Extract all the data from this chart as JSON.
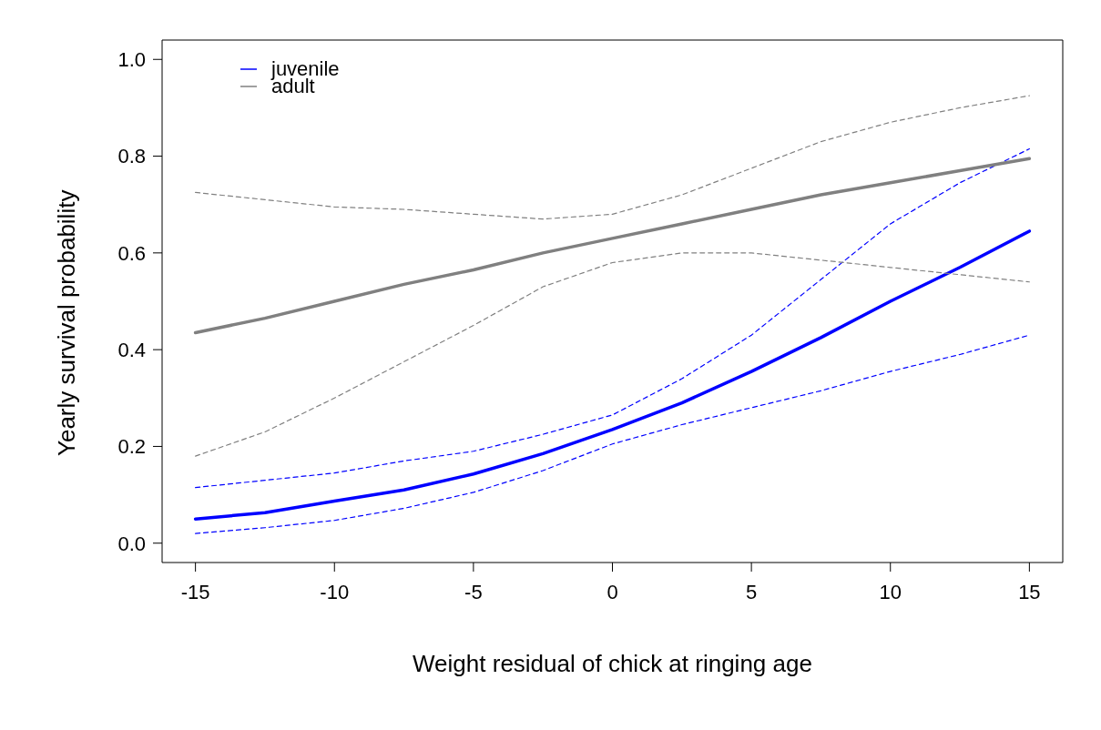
{
  "chart_data": {
    "type": "line",
    "xlabel": "Weight residual of chick at ringing age",
    "ylabel": "Yearly survival probability",
    "x": [
      -15,
      -12.5,
      -10,
      -7.5,
      -5,
      -2.5,
      0,
      2.5,
      5,
      7.5,
      10,
      12.5,
      15
    ],
    "series": [
      {
        "name": "juvenile",
        "color": "#0000ff",
        "line_style": "solid",
        "values": [
          0.05,
          0.063,
          0.087,
          0.11,
          0.143,
          0.185,
          0.235,
          0.29,
          0.355,
          0.425,
          0.5,
          0.57,
          0.645
        ]
      },
      {
        "color": "#0000ff",
        "line_style": "dashed",
        "values": [
          0.02,
          0.032,
          0.047,
          0.072,
          0.105,
          0.15,
          0.205,
          0.245,
          0.28,
          0.315,
          0.355,
          0.39,
          0.43
        ]
      },
      {
        "color": "#0000ff",
        "line_style": "dashed",
        "values": [
          0.115,
          0.13,
          0.145,
          0.17,
          0.19,
          0.225,
          0.265,
          0.34,
          0.43,
          0.545,
          0.66,
          0.745,
          0.815
        ]
      },
      {
        "name": "adult",
        "color": "#808080",
        "line_style": "solid",
        "values": [
          0.435,
          0.465,
          0.5,
          0.535,
          0.565,
          0.6,
          0.63,
          0.66,
          0.69,
          0.72,
          0.745,
          0.77,
          0.795
        ]
      },
      {
        "color": "#808080",
        "line_style": "dashed",
        "values": [
          0.18,
          0.23,
          0.3,
          0.375,
          0.45,
          0.53,
          0.58,
          0.6,
          0.6,
          0.585,
          0.57,
          0.555,
          0.54
        ]
      },
      {
        "color": "#808080",
        "line_style": "dashed",
        "values": [
          0.725,
          0.71,
          0.695,
          0.69,
          0.68,
          0.67,
          0.68,
          0.72,
          0.775,
          0.83,
          0.87,
          0.9,
          0.925
        ]
      }
    ],
    "xlim": [
      -16.2,
      16.2
    ],
    "xticks": [
      -15,
      -10,
      -5,
      0,
      5,
      10,
      15
    ],
    "ylim": [
      -0.04,
      1.04
    ],
    "yticks": [
      {
        "value": 0,
        "label": "0.0"
      },
      {
        "value": 0.2,
        "label": "0.2"
      },
      {
        "value": 0.4,
        "label": "0.4"
      },
      {
        "value": 0.6,
        "label": "0.6"
      },
      {
        "value": 0.8,
        "label": "0.8"
      },
      {
        "value": 1,
        "label": "1.0"
      }
    ],
    "legend": "top left",
    "grid": false,
    "marker": "none"
  }
}
